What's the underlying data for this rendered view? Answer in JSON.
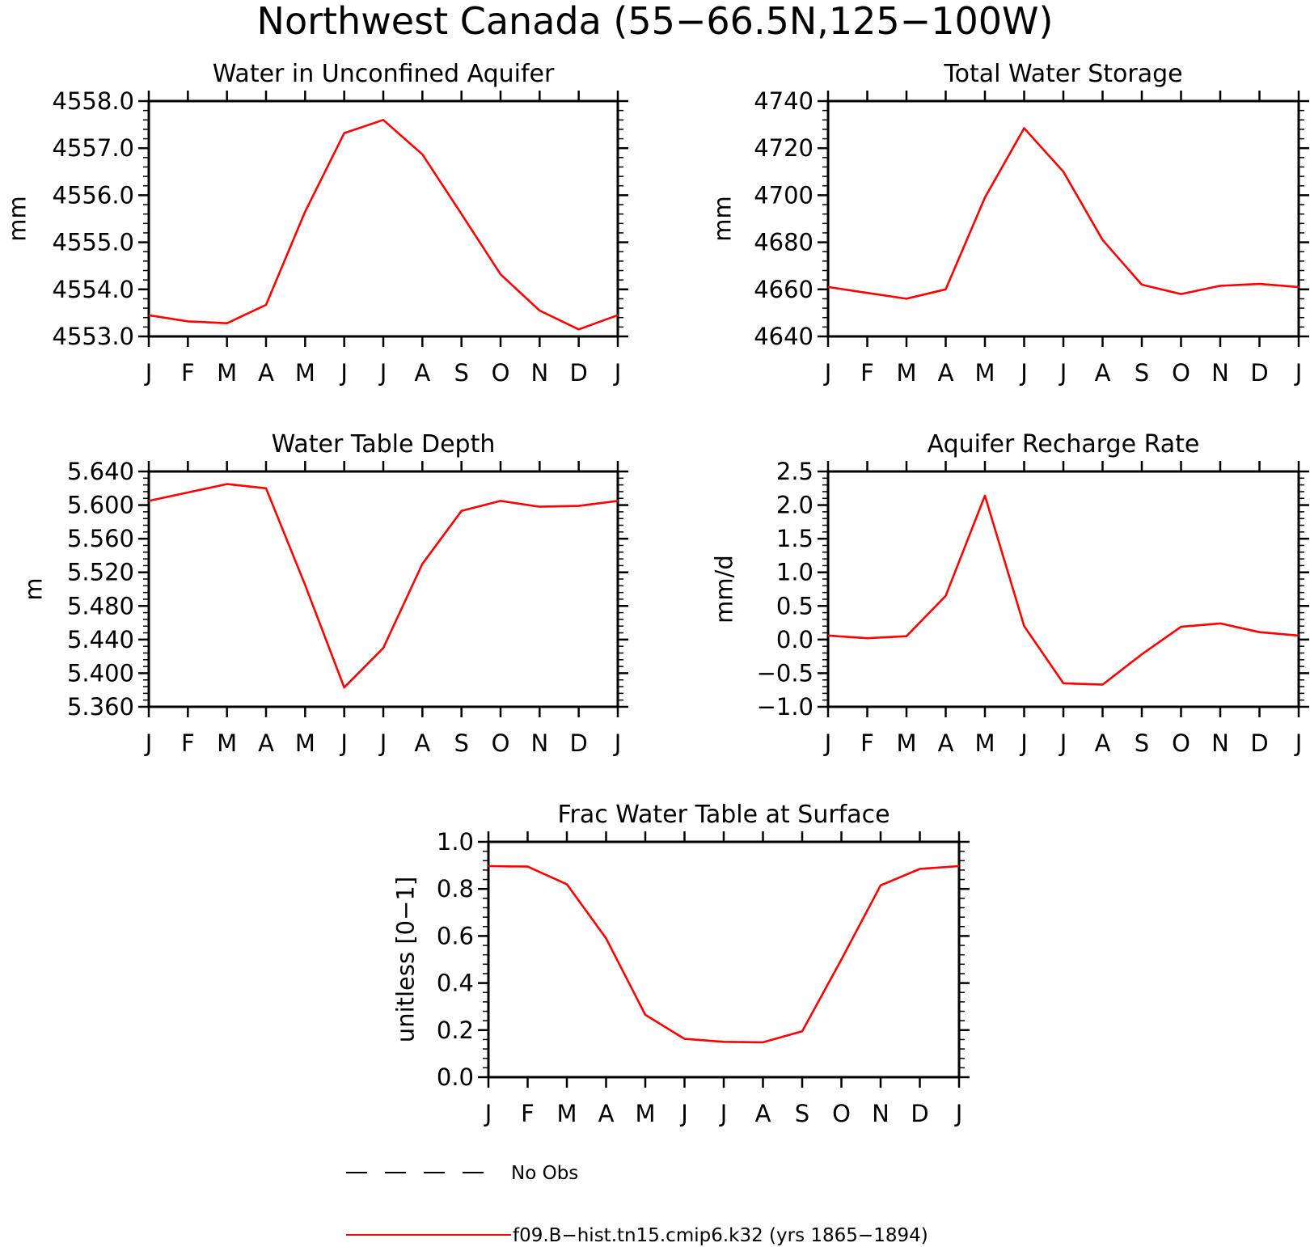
{
  "figure": {
    "title": "Northwest Canada (55−66.5N,125−100W)",
    "series_color": "#ff0000",
    "obs_color": "#000000"
  },
  "legend": {
    "obs_label": "No Obs",
    "model_label": "f09.B−hist.tn15.cmip6.k32 (yrs 1865−1894)"
  },
  "chart_data": [
    {
      "type": "line",
      "title": "Water in Unconfined Aquifer",
      "ylabel": "mm",
      "xlabel": "",
      "categories": [
        "J",
        "F",
        "M",
        "A",
        "M",
        "J",
        "J",
        "A",
        "S",
        "O",
        "N",
        "D",
        "J"
      ],
      "ylim": [
        4553.0,
        4558.0
      ],
      "yticks": [
        "4553.0",
        "4554.0",
        "4555.0",
        "4556.0",
        "4557.0",
        "4558.0"
      ],
      "grid": false,
      "series": [
        {
          "values": [
            4553.45,
            4553.32,
            4553.28,
            4553.67,
            4555.65,
            4557.32,
            4557.6,
            4556.87,
            4555.6,
            4554.32,
            4553.55,
            4553.15,
            4553.45
          ]
        }
      ]
    },
    {
      "type": "line",
      "title": "Total Water Storage",
      "ylabel": "mm",
      "xlabel": "",
      "categories": [
        "J",
        "F",
        "M",
        "A",
        "M",
        "J",
        "J",
        "A",
        "S",
        "O",
        "N",
        "D",
        "J"
      ],
      "ylim": [
        4640,
        4740
      ],
      "yticks": [
        "4640",
        "4660",
        "4680",
        "4700",
        "4720",
        "4740"
      ],
      "grid": false,
      "series": [
        {
          "values": [
            4661,
            4658.5,
            4656,
            4660,
            4699,
            4728.5,
            4710,
            4681,
            4662,
            4658,
            4661.5,
            4662.3,
            4661
          ]
        }
      ]
    },
    {
      "type": "line",
      "title": "Water Table Depth",
      "ylabel": "m",
      "xlabel": "",
      "categories": [
        "J",
        "F",
        "M",
        "A",
        "M",
        "J",
        "J",
        "A",
        "S",
        "O",
        "N",
        "D",
        "J"
      ],
      "ylim": [
        5.36,
        5.64
      ],
      "yticks": [
        "5.360",
        "5.400",
        "5.440",
        "5.480",
        "5.520",
        "5.560",
        "5.600",
        "5.640"
      ],
      "grid": false,
      "series": [
        {
          "values": [
            5.605,
            5.615,
            5.625,
            5.62,
            5.505,
            5.383,
            5.43,
            5.53,
            5.593,
            5.605,
            5.598,
            5.599,
            5.605
          ]
        }
      ]
    },
    {
      "type": "line",
      "title": "Aquifer Recharge Rate",
      "ylabel": "mm/d",
      "xlabel": "",
      "categories": [
        "J",
        "F",
        "M",
        "A",
        "M",
        "J",
        "J",
        "A",
        "S",
        "O",
        "N",
        "D",
        "J"
      ],
      "ylim": [
        -1.0,
        2.5
      ],
      "yticks": [
        "−1.0",
        "−0.5",
        "0.0",
        "0.5",
        "1.0",
        "1.5",
        "2.0",
        "2.5"
      ],
      "grid": false,
      "series": [
        {
          "values": [
            0.06,
            0.02,
            0.05,
            0.65,
            2.14,
            0.2,
            -0.65,
            -0.67,
            -0.22,
            0.19,
            0.24,
            0.11,
            0.06
          ]
        }
      ]
    },
    {
      "type": "line",
      "title": "Frac Water Table at Surface",
      "ylabel": "unitless [0−1]",
      "xlabel": "",
      "categories": [
        "J",
        "F",
        "M",
        "A",
        "M",
        "J",
        "J",
        "A",
        "S",
        "O",
        "N",
        "D",
        "J"
      ],
      "ylim": [
        0.0,
        1.0
      ],
      "yticks": [
        "0.0",
        "0.2",
        "0.4",
        "0.6",
        "0.8",
        "1.0"
      ],
      "grid": false,
      "series": [
        {
          "values": [
            0.897,
            0.895,
            0.82,
            0.59,
            0.265,
            0.163,
            0.15,
            0.148,
            0.195,
            0.5,
            0.815,
            0.885,
            0.897
          ]
        }
      ]
    }
  ]
}
